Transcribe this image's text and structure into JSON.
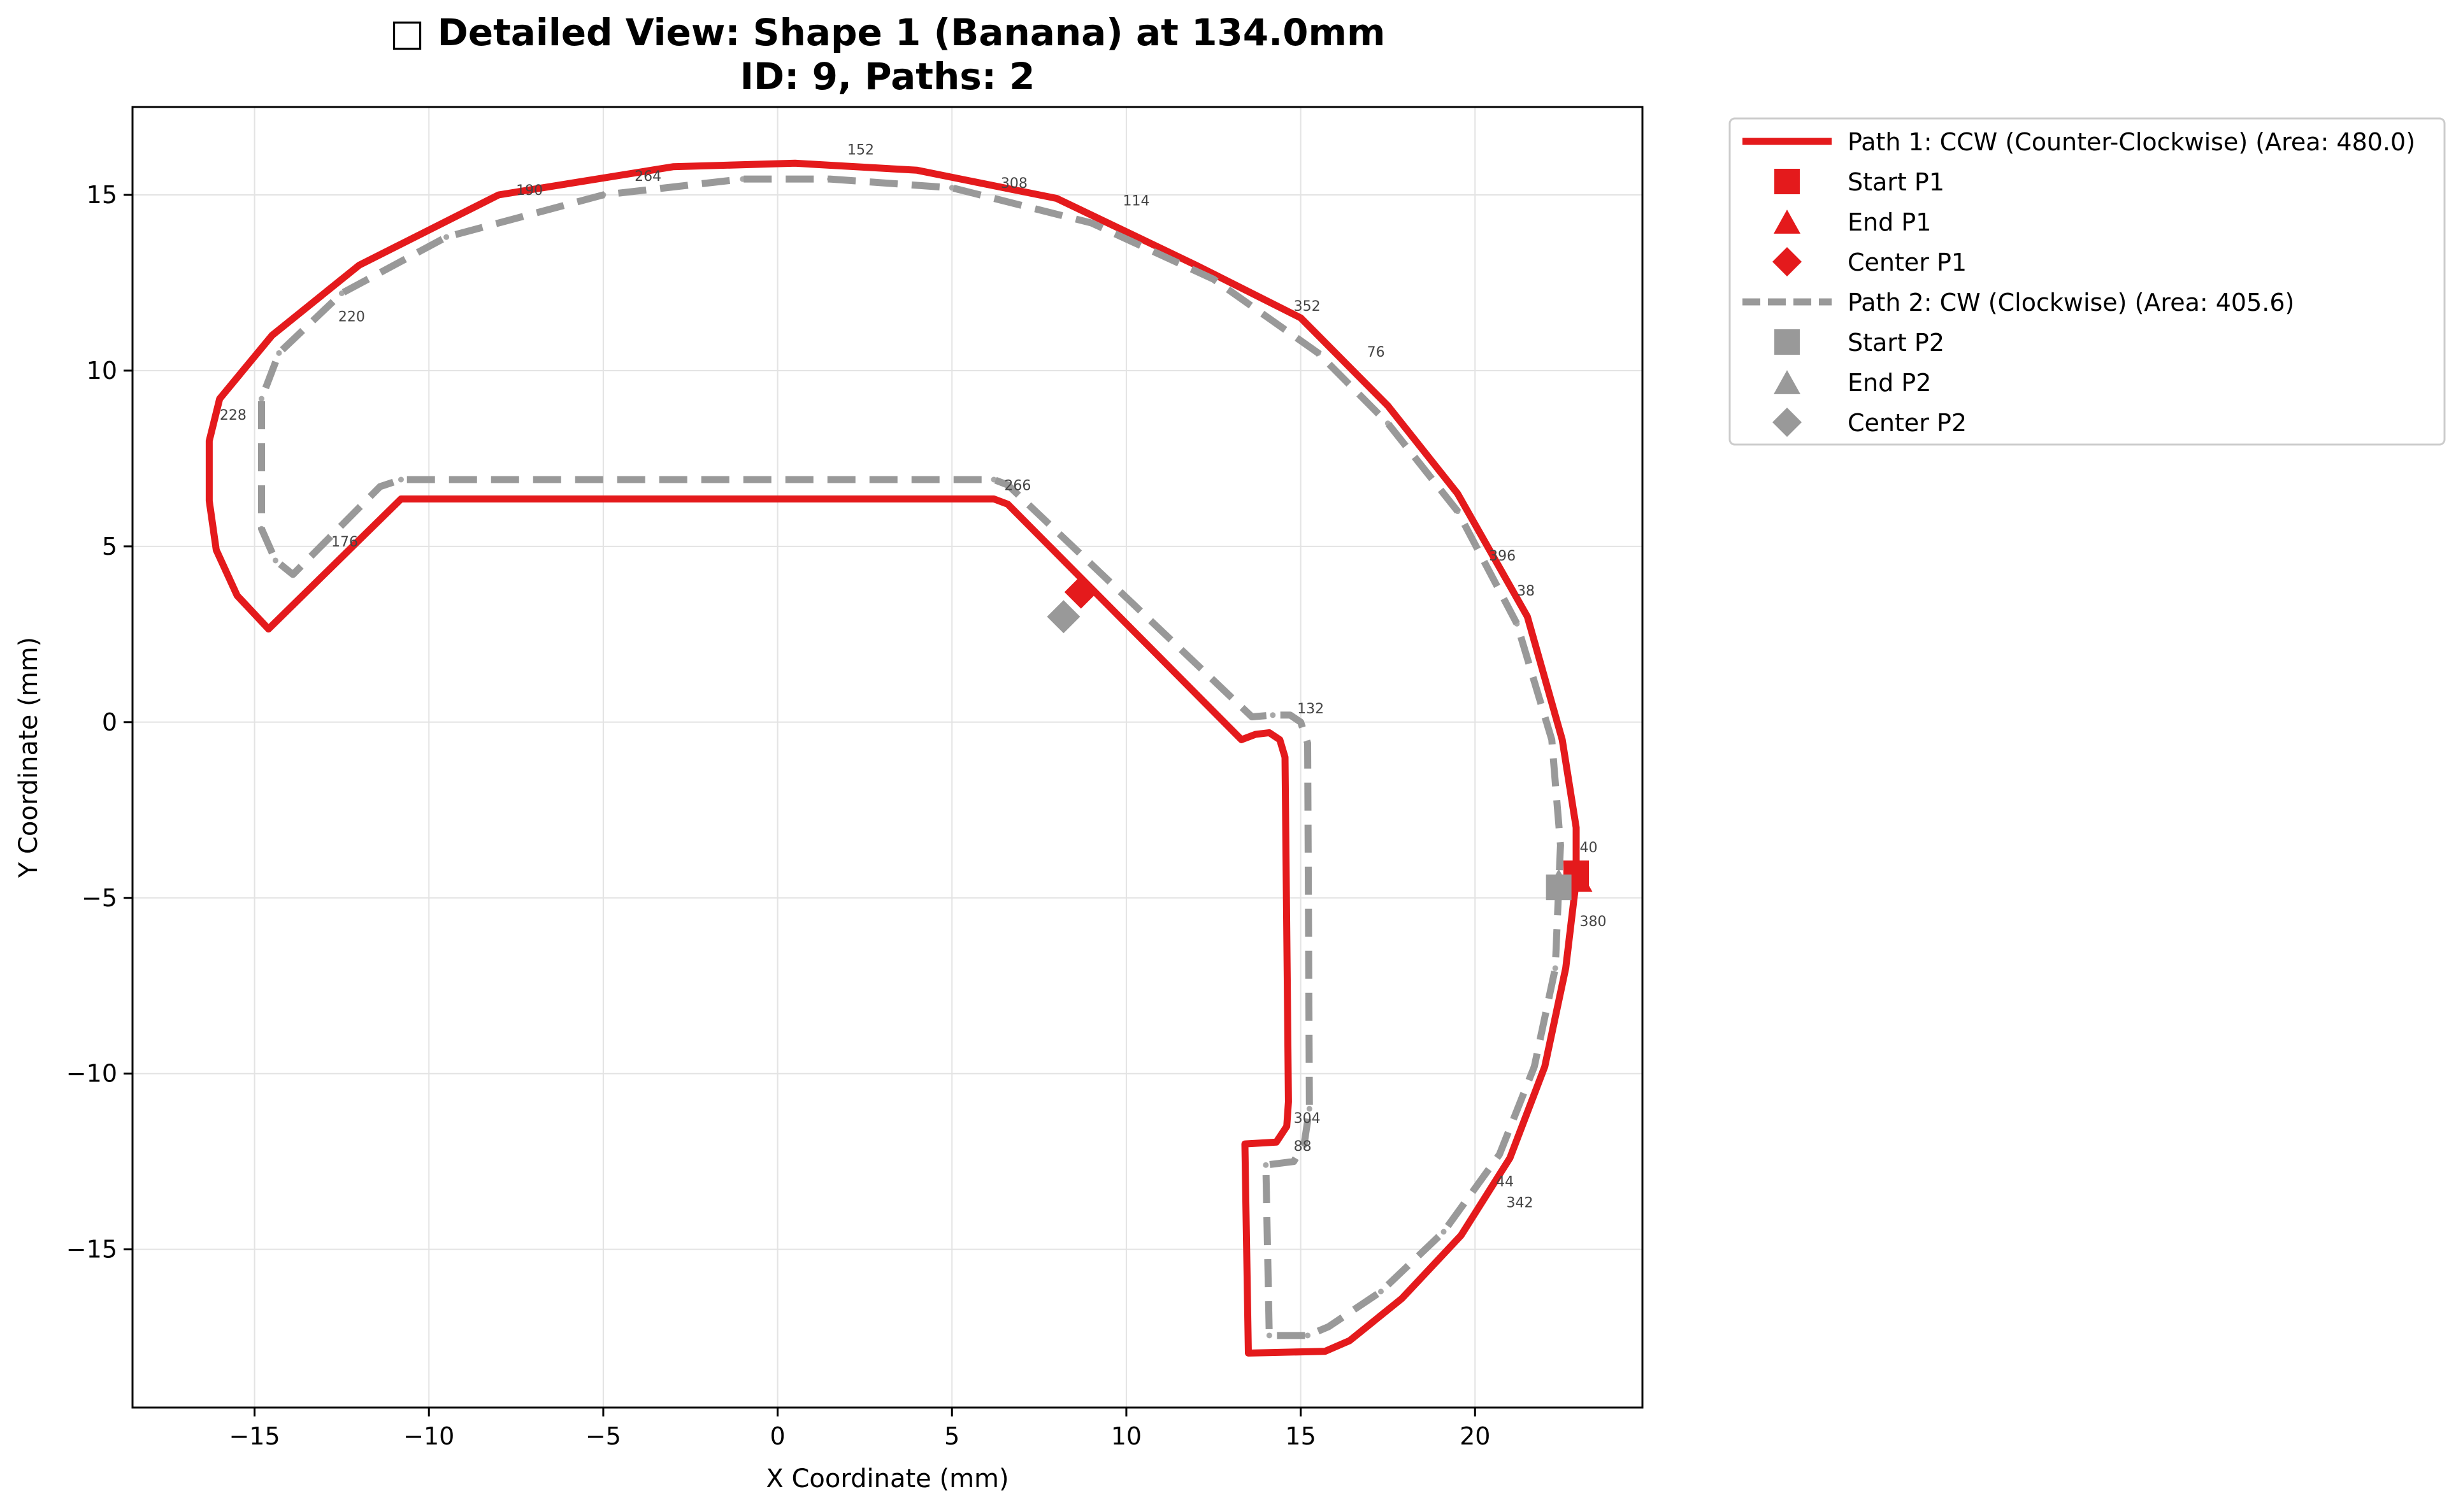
{
  "chart_data": {
    "type": "line",
    "title": "□ Detailed View: Shape 1 (Banana) at 134.0mm",
    "subtitle": "ID: 9, Paths: 2",
    "xlabel": "X Coordinate (mm)",
    "ylabel": "Y Coordinate (mm)",
    "xlim": [
      -18.5,
      24.8
    ],
    "ylim": [
      -19.5,
      17.5
    ],
    "xticks": [
      -15,
      -10,
      -5,
      0,
      5,
      10,
      15,
      20
    ],
    "xtick_labels": [
      "−15",
      "−10",
      "−5",
      "0",
      "5",
      "10",
      "15",
      "20"
    ],
    "yticks": [
      -15,
      -10,
      -5,
      0,
      5,
      10,
      15
    ],
    "ytick_labels": [
      "−15",
      "−10",
      "−5",
      "0",
      "5",
      "10",
      "15"
    ],
    "grid": true,
    "legend_position": "outside-right-top",
    "series": [
      {
        "name": "Path 1: CCW (Counter-Clockwise) (Area: 480.0)",
        "color": "#e41a1c",
        "style": "solid",
        "points": [
          [
            22.9,
            -4.5
          ],
          [
            22.6,
            -7.0
          ],
          [
            22.0,
            -9.8
          ],
          [
            21.0,
            -12.4
          ],
          [
            19.6,
            -14.6
          ],
          [
            17.9,
            -16.4
          ],
          [
            16.4,
            -17.6
          ],
          [
            15.7,
            -17.9
          ],
          [
            13.5,
            -17.95
          ],
          [
            13.4,
            -12.0
          ],
          [
            14.3,
            -11.95
          ],
          [
            14.6,
            -11.5
          ],
          [
            14.65,
            -10.8
          ],
          [
            14.55,
            -1.0
          ],
          [
            14.4,
            -0.5
          ],
          [
            14.1,
            -0.3
          ],
          [
            13.7,
            -0.35
          ],
          [
            13.3,
            -0.5
          ],
          [
            6.6,
            6.2
          ],
          [
            6.2,
            6.35
          ],
          [
            -10.8,
            6.35
          ],
          [
            -14.6,
            2.65
          ],
          [
            -15.5,
            3.6
          ],
          [
            -16.1,
            4.9
          ],
          [
            -16.3,
            6.3
          ],
          [
            -16.3,
            8.0
          ],
          [
            -16.0,
            9.2
          ],
          [
            -14.5,
            11.0
          ],
          [
            -12.0,
            13.0
          ],
          [
            -8.0,
            15.0
          ],
          [
            -3.0,
            15.8
          ],
          [
            0.5,
            15.9
          ],
          [
            4.0,
            15.7
          ],
          [
            8.0,
            14.9
          ],
          [
            12.0,
            13.0
          ],
          [
            15.0,
            11.5
          ],
          [
            17.5,
            9.0
          ],
          [
            19.5,
            6.5
          ],
          [
            21.5,
            3.0
          ],
          [
            22.5,
            -0.5
          ],
          [
            22.9,
            -3.0
          ],
          [
            22.9,
            -4.5
          ]
        ],
        "start": [
          22.9,
          -4.3
        ],
        "end": [
          23.0,
          -4.5
        ],
        "center": [
          8.7,
          3.7
        ]
      },
      {
        "name": "Path 2: CW (Clockwise) (Area: 405.6)",
        "color": "#999999",
        "style": "dashed",
        "points": [
          [
            22.4,
            -4.7
          ],
          [
            22.3,
            -7.0
          ],
          [
            21.7,
            -9.8
          ],
          [
            20.7,
            -12.3
          ],
          [
            19.1,
            -14.5
          ],
          [
            17.3,
            -16.2
          ],
          [
            15.8,
            -17.2
          ],
          [
            15.2,
            -17.45
          ],
          [
            14.1,
            -17.45
          ],
          [
            14.0,
            -12.6
          ],
          [
            14.8,
            -12.5
          ],
          [
            15.1,
            -12.0
          ],
          [
            15.25,
            -11.0
          ],
          [
            15.2,
            -0.6
          ],
          [
            15.0,
            0.0
          ],
          [
            14.7,
            0.2
          ],
          [
            14.2,
            0.2
          ],
          [
            13.6,
            0.15
          ],
          [
            6.6,
            6.75
          ],
          [
            6.2,
            6.9
          ],
          [
            -10.8,
            6.9
          ],
          [
            -11.4,
            6.7
          ],
          [
            -13.9,
            4.2
          ],
          [
            -14.4,
            4.6
          ],
          [
            -14.8,
            5.5
          ],
          [
            -14.8,
            9.2
          ],
          [
            -14.3,
            10.5
          ],
          [
            -12.5,
            12.2
          ],
          [
            -9.5,
            13.8
          ],
          [
            -5.0,
            15.0
          ],
          [
            -1.0,
            15.45
          ],
          [
            1.5,
            15.45
          ],
          [
            5.0,
            15.2
          ],
          [
            9.0,
            14.2
          ],
          [
            12.5,
            12.6
          ],
          [
            15.5,
            10.5
          ],
          [
            17.5,
            8.5
          ],
          [
            19.5,
            6.0
          ],
          [
            21.2,
            2.8
          ],
          [
            22.2,
            -0.5
          ],
          [
            22.45,
            -3.5
          ],
          [
            22.4,
            -4.7
          ]
        ],
        "start": [
          22.4,
          -4.7
        ],
        "end": [
          22.4,
          -4.5
        ],
        "center": [
          8.2,
          3.0
        ]
      }
    ],
    "point_labels": [
      {
        "text": "152",
        "x": 2.0,
        "y": 16.15
      },
      {
        "text": "308",
        "x": 6.4,
        "y": 15.2
      },
      {
        "text": "114",
        "x": 9.9,
        "y": 14.7
      },
      {
        "text": "190",
        "x": -7.5,
        "y": 15.0
      },
      {
        "text": "264",
        "x": -4.1,
        "y": 15.4
      },
      {
        "text": "220",
        "x": -12.6,
        "y": 11.4
      },
      {
        "text": "228",
        "x": -16.0,
        "y": 8.6
      },
      {
        "text": "352",
        "x": 14.8,
        "y": 11.7
      },
      {
        "text": "76",
        "x": 16.9,
        "y": 10.4
      },
      {
        "text": "266",
        "x": 6.5,
        "y": 6.6
      },
      {
        "text": "176",
        "x": -12.8,
        "y": 5.0
      },
      {
        "text": "396",
        "x": 20.4,
        "y": 4.6
      },
      {
        "text": "38",
        "x": 21.2,
        "y": 3.6
      },
      {
        "text": "132",
        "x": 14.9,
        "y": 0.25
      },
      {
        "text": "40",
        "x": 23.0,
        "y": -3.7
      },
      {
        "text": "0",
        "x": 22.75,
        "y": -4.3
      },
      {
        "text": "380",
        "x": 23.0,
        "y": -5.8
      },
      {
        "text": "304",
        "x": 14.8,
        "y": -11.4
      },
      {
        "text": "88",
        "x": 14.8,
        "y": -12.2
      },
      {
        "text": "44",
        "x": 20.6,
        "y": -13.2
      },
      {
        "text": "342",
        "x": 20.9,
        "y": -13.8
      }
    ],
    "legend": [
      {
        "label": "Path 1: CCW (Counter-Clockwise) (Area: 480.0)",
        "marker": "line",
        "color": "#e41a1c",
        "dashed": false
      },
      {
        "label": "Start P1",
        "marker": "square",
        "color": "#e41a1c"
      },
      {
        "label": "End P1",
        "marker": "triangle",
        "color": "#e41a1c"
      },
      {
        "label": "Center P1",
        "marker": "diamond",
        "color": "#e41a1c"
      },
      {
        "label": "Path 2: CW (Clockwise) (Area: 405.6)",
        "marker": "line",
        "color": "#999999",
        "dashed": true
      },
      {
        "label": "Start P2",
        "marker": "square",
        "color": "#999999"
      },
      {
        "label": "End P2",
        "marker": "triangle",
        "color": "#999999"
      },
      {
        "label": "Center P2",
        "marker": "diamond",
        "color": "#999999"
      }
    ]
  }
}
